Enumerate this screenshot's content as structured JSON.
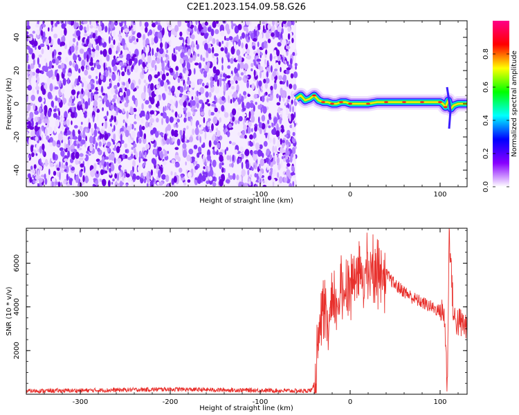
{
  "title": "C2E1.2023.154.09.58.G26",
  "chart_data": [
    {
      "type": "heatmap",
      "panel": "spectrogram",
      "xlabel": "Height of straight line (km)",
      "ylabel": "Frequency (Hz)",
      "xlim": [
        -360,
        130
      ],
      "ylim": [
        -50,
        50
      ],
      "xticks": [
        -300,
        -200,
        -100,
        0,
        100
      ],
      "yticks": [
        -40,
        -20,
        0,
        20,
        40
      ],
      "noise_region_x": [
        -360,
        -60
      ],
      "signal_region_x": [
        -60,
        130
      ],
      "noise_color": "#6a00e0",
      "signal_trace": {
        "x": [
          -60,
          -55,
          -50,
          -45,
          -40,
          -35,
          -30,
          -25,
          -20,
          -15,
          -10,
          -5,
          0,
          10,
          20,
          30,
          40,
          50,
          60,
          70,
          80,
          90,
          100,
          103,
          106,
          109,
          112,
          115,
          120,
          130
        ],
        "y": [
          3,
          5,
          2,
          3,
          5,
          2,
          1,
          1,
          0,
          0,
          1,
          1,
          0,
          0,
          0,
          1,
          1,
          1,
          1,
          1,
          1,
          1,
          1,
          0,
          -2,
          2,
          -3,
          -1,
          0,
          0
        ]
      },
      "colorbar": {
        "label": "Normalized spectral amplitude",
        "range": [
          0,
          1
        ],
        "ticks": [
          "0.0",
          "0.2",
          "0.4",
          "0.6",
          "0.8"
        ],
        "colors": [
          "#ffffff",
          "#8800ff",
          "#0000ff",
          "#00ffff",
          "#00ff00",
          "#ffff00",
          "#ff0000",
          "#ff0088"
        ]
      }
    },
    {
      "type": "line",
      "panel": "snr",
      "xlabel": "Height of straight line (km)",
      "ylabel": "SNR (10 * v/v)",
      "xlim": [
        -360,
        130
      ],
      "ylim": [
        0,
        7600
      ],
      "xticks": [
        -300,
        -200,
        -100,
        0,
        100
      ],
      "yticks": [
        2000,
        4000,
        6000
      ],
      "color": "#e8302c",
      "series": [
        {
          "x": [
            -360,
            -300,
            -250,
            -200,
            -150,
            -100,
            -50,
            -42,
            -38,
            -35,
            -30,
            -25,
            -20,
            -10,
            0,
            10,
            20,
            30,
            35,
            40,
            50,
            60,
            70,
            80,
            90,
            100,
            105,
            108,
            110,
            112,
            115,
            120,
            130
          ],
          "y": [
            150,
            170,
            200,
            230,
            200,
            180,
            150,
            200,
            800,
            2500,
            3500,
            3000,
            3800,
            4500,
            5200,
            5400,
            5600,
            5800,
            5700,
            5500,
            5000,
            4700,
            4400,
            4200,
            4000,
            3800,
            3600,
            200,
            7500,
            6000,
            3500,
            3300,
            3100
          ]
        }
      ]
    }
  ]
}
